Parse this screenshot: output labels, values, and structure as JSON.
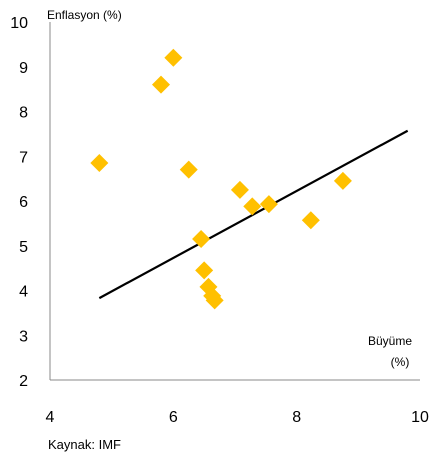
{
  "chart_data": {
    "type": "scatter",
    "ylabel": "Enflasyon (%)",
    "xlabel_line1": "Büyüme",
    "xlabel_line2": "(%)",
    "source": "Kaynak: IMF",
    "xlim": [
      4,
      10
    ],
    "ylim": [
      2,
      10
    ],
    "x_ticks": [
      4,
      6,
      8,
      10
    ],
    "y_ticks": [
      2,
      3,
      4,
      5,
      6,
      7,
      8,
      9,
      10
    ],
    "grid": false,
    "series": [
      {
        "marker": "diamond",
        "color": "#FFC000",
        "points": [
          {
            "x": 4.8,
            "y": 6.85
          },
          {
            "x": 5.8,
            "y": 8.6
          },
          {
            "x": 6.0,
            "y": 9.2
          },
          {
            "x": 6.25,
            "y": 6.7
          },
          {
            "x": 6.45,
            "y": 5.15
          },
          {
            "x": 6.5,
            "y": 4.45
          },
          {
            "x": 6.57,
            "y": 4.08
          },
          {
            "x": 6.63,
            "y": 3.88
          },
          {
            "x": 6.67,
            "y": 3.78
          },
          {
            "x": 7.08,
            "y": 6.25
          },
          {
            "x": 7.28,
            "y": 5.88
          },
          {
            "x": 7.55,
            "y": 5.93
          },
          {
            "x": 8.23,
            "y": 5.57
          },
          {
            "x": 8.75,
            "y": 6.45
          }
        ]
      }
    ],
    "trendline": {
      "x1": 4.8,
      "y1": 3.83,
      "x2": 9.8,
      "y2": 7.57,
      "color": "#000000"
    }
  }
}
